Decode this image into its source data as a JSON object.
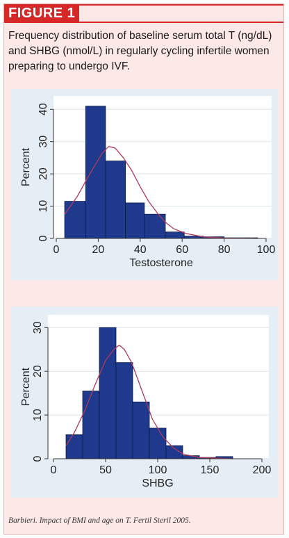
{
  "figure": {
    "label": "FIGURE 1",
    "caption": "Frequency distribution of baseline serum total T (ng/dL) and SHBG (nmol/L) in regularly cycling infertile women preparing to undergo IVF.",
    "source": "Barbieri. Impact of BMI and age on T. Fertil Steril 2005."
  },
  "colors": {
    "bar_fill": "#1f3a8c",
    "bar_stroke": "#0a1a4a",
    "curve": "#b03a5a",
    "panel_bg": "#e5eef5",
    "plot_bg": "#ffffff",
    "grid": "#dde4ea",
    "accent": "#d72828"
  },
  "chart_data": [
    {
      "type": "bar",
      "xlabel": "Testosterone",
      "ylabel": "Percent",
      "xlim": [
        0,
        100
      ],
      "ylim": [
        0,
        42
      ],
      "xticks": [
        0,
        20,
        40,
        60,
        80,
        100
      ],
      "yticks": [
        0,
        10,
        20,
        30,
        40
      ],
      "grid": true,
      "bins": [
        {
          "start": 4,
          "end": 14,
          "value": 11.5
        },
        {
          "start": 14,
          "end": 23.5,
          "value": 41
        },
        {
          "start": 23.5,
          "end": 33,
          "value": 24
        },
        {
          "start": 33,
          "end": 42,
          "value": 11
        },
        {
          "start": 42,
          "end": 52,
          "value": 7.5
        },
        {
          "start": 52,
          "end": 61,
          "value": 2
        },
        {
          "start": 61,
          "end": 70,
          "value": 0.7
        },
        {
          "start": 70,
          "end": 80,
          "value": 0.5
        },
        {
          "start": 80,
          "end": 90,
          "value": 0.2
        },
        {
          "start": 90,
          "end": 96,
          "value": 0.2
        }
      ],
      "curve": [
        [
          4,
          7.5
        ],
        [
          10,
          13
        ],
        [
          16,
          20
        ],
        [
          22,
          26.5
        ],
        [
          25,
          28.5
        ],
        [
          28,
          28
        ],
        [
          32,
          25
        ],
        [
          36,
          21
        ],
        [
          40,
          16
        ],
        [
          44,
          11.5
        ],
        [
          48,
          8
        ],
        [
          52,
          5
        ],
        [
          56,
          3
        ],
        [
          62,
          1.5
        ],
        [
          70,
          0.5
        ],
        [
          80,
          0.1
        ],
        [
          96,
          0
        ]
      ]
    },
    {
      "type": "bar",
      "xlabel": "SHBG",
      "ylabel": "Percent",
      "xlim": [
        0,
        200
      ],
      "ylim": [
        0,
        31
      ],
      "xticks": [
        0,
        50,
        100,
        150,
        200
      ],
      "yticks": [
        0,
        10,
        20,
        30
      ],
      "grid": true,
      "bins": [
        {
          "start": 12,
          "end": 28,
          "value": 5.5
        },
        {
          "start": 28,
          "end": 44,
          "value": 15.5
        },
        {
          "start": 44,
          "end": 60,
          "value": 30
        },
        {
          "start": 60,
          "end": 76,
          "value": 22
        },
        {
          "start": 76,
          "end": 92,
          "value": 13
        },
        {
          "start": 92,
          "end": 108,
          "value": 7
        },
        {
          "start": 108,
          "end": 124,
          "value": 3
        },
        {
          "start": 124,
          "end": 140,
          "value": 0.7
        },
        {
          "start": 140,
          "end": 156,
          "value": 0.3
        },
        {
          "start": 156,
          "end": 172,
          "value": 0.5
        }
      ],
      "curve": [
        [
          12,
          3
        ],
        [
          20,
          6
        ],
        [
          30,
          11
        ],
        [
          40,
          17
        ],
        [
          50,
          22.5
        ],
        [
          58,
          25
        ],
        [
          63,
          26
        ],
        [
          68,
          25
        ],
        [
          75,
          22
        ],
        [
          85,
          15.5
        ],
        [
          95,
          9
        ],
        [
          105,
          5
        ],
        [
          115,
          2.5
        ],
        [
          125,
          1
        ],
        [
          140,
          0.3
        ],
        [
          160,
          0.1
        ],
        [
          172,
          0
        ]
      ]
    }
  ]
}
